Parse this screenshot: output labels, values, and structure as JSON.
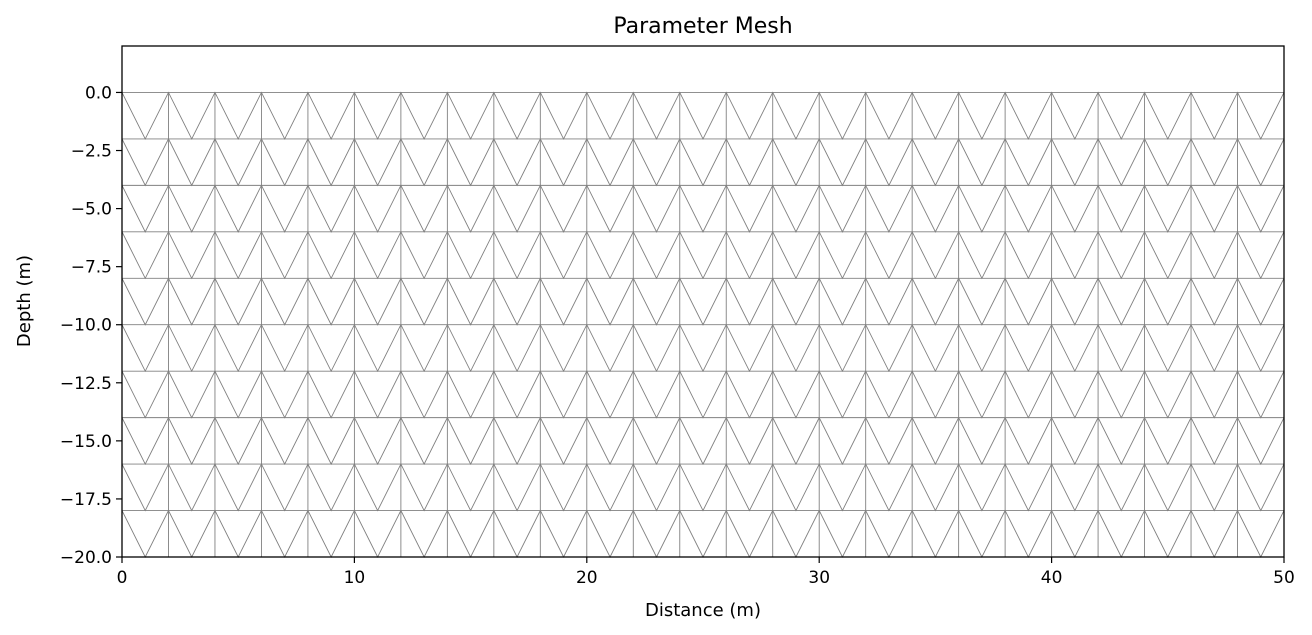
{
  "chart_data": {
    "type": "mesh",
    "title": "Parameter Mesh",
    "xlabel": "Distance (m)",
    "ylabel": "Depth (m)",
    "xlim": [
      0,
      50
    ],
    "ylim": [
      -20,
      2
    ],
    "xticks": [
      0,
      10,
      20,
      30,
      40,
      50
    ],
    "xtick_labels": [
      "0",
      "10",
      "20",
      "30",
      "40",
      "50"
    ],
    "yticks": [
      0,
      -2.5,
      -5,
      -7.5,
      -10,
      -12.5,
      -15,
      -17.5,
      -20
    ],
    "ytick_labels": [
      "0.0",
      "−2.5",
      "−5.0",
      "−7.5",
      "−10.0",
      "−12.5",
      "−15.0",
      "−17.5",
      "−20.0"
    ],
    "mesh": {
      "x_start": 0,
      "x_end": 50,
      "x_step": 1,
      "depth_top": 0,
      "depth_bottom": -20,
      "layer_thickness": 2,
      "element": "triangle"
    },
    "grid": false,
    "colors": {
      "mesh_line": "#808080",
      "axes": "#000000",
      "background": "#ffffff"
    }
  }
}
